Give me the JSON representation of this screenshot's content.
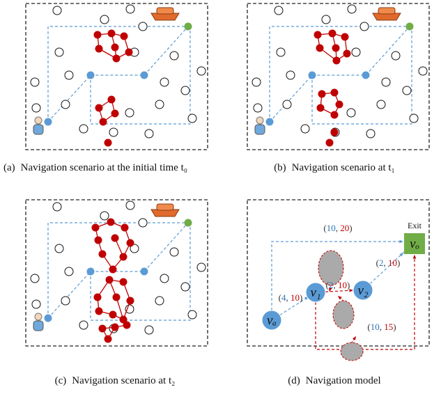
{
  "panels": [
    {
      "label": "(a)",
      "caption": "Navigation scenario at the initial time t₀"
    },
    {
      "label": "(b)",
      "caption": "Navigation scenario at t₁"
    },
    {
      "label": "(c)",
      "caption": "Navigation scenario at t₂"
    },
    {
      "label": "(d)",
      "caption": "Navigation model"
    }
  ],
  "model": {
    "exit": "Exit",
    "nodes": [
      "vₐ",
      "v₁",
      "v₂",
      "vₒ"
    ],
    "edges": [
      "(10, 20)",
      "(2, 10)",
      "(2, 10)",
      "(4, 10)",
      "(10, 15)"
    ]
  }
}
